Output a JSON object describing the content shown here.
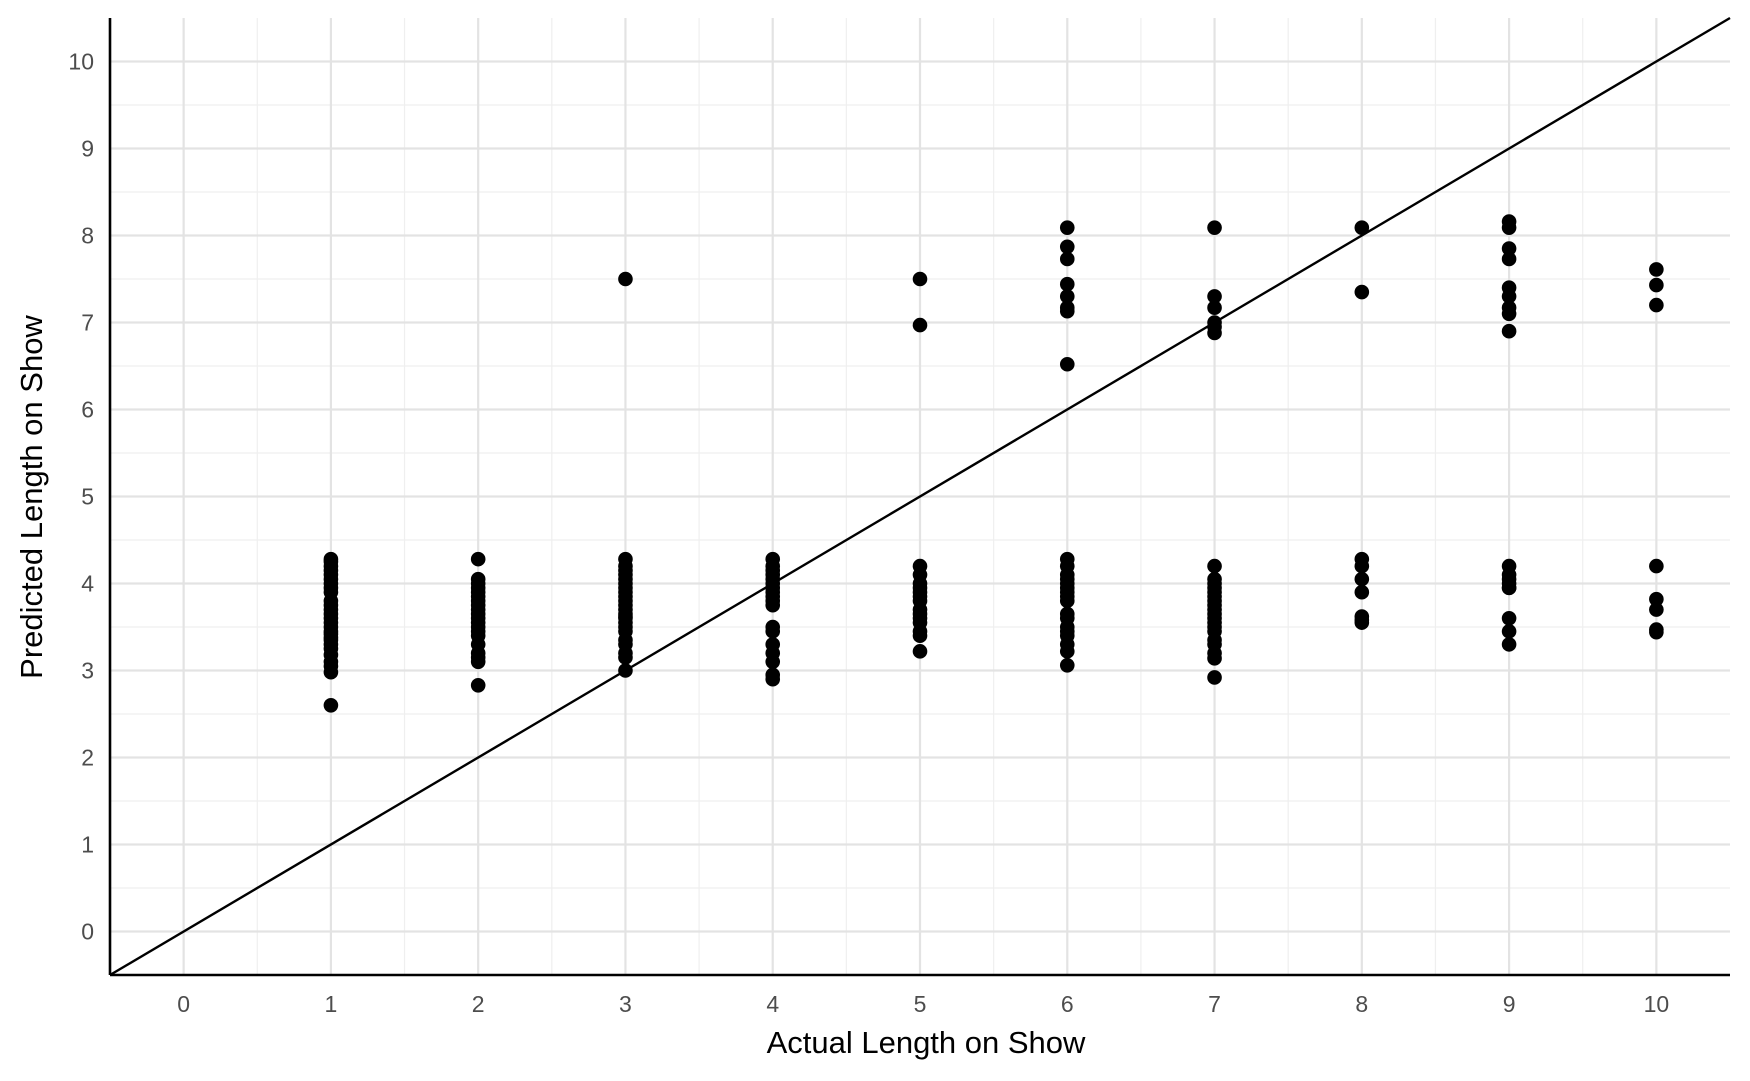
{
  "chart_data": {
    "type": "scatter",
    "xlabel": "Actual Length on Show",
    "ylabel": "Predicted Length on Show",
    "xlim": [
      -0.5,
      10.5
    ],
    "ylim": [
      -0.5,
      10.5
    ],
    "x_ticks": [
      "0",
      "1",
      "2",
      "3",
      "4",
      "5",
      "6",
      "7",
      "8",
      "9",
      "10"
    ],
    "y_ticks": [
      "0",
      "1",
      "2",
      "3",
      "4",
      "5",
      "6",
      "7",
      "8",
      "9",
      "10"
    ],
    "grid": true,
    "reference_line": {
      "slope": 1,
      "intercept": 0
    },
    "point_color": "#000000",
    "points": {
      "x": [
        1,
        1,
        1,
        1,
        1,
        1,
        1,
        1,
        1,
        1,
        1,
        1,
        1,
        1,
        1,
        1,
        1,
        1,
        1,
        1,
        1,
        1,
        1,
        1,
        1,
        1,
        1,
        2,
        2,
        2,
        2,
        2,
        2,
        2,
        2,
        2,
        2,
        2,
        2,
        2,
        2,
        2,
        2,
        2,
        2,
        2,
        2,
        3,
        3,
        3,
        3,
        3,
        3,
        3,
        3,
        3,
        3,
        3,
        3,
        3,
        3,
        3,
        3,
        3,
        3,
        3,
        3,
        3,
        3,
        3,
        3,
        4,
        4,
        4,
        4,
        4,
        4,
        4,
        4,
        4,
        4,
        4,
        4,
        4,
        4,
        4,
        4,
        4,
        4,
        5,
        5,
        5,
        5,
        5,
        5,
        5,
        5,
        5,
        5,
        5,
        5,
        5,
        5,
        5,
        5,
        6,
        6,
        6,
        6,
        6,
        6,
        6,
        6,
        6,
        6,
        6,
        6,
        6,
        6,
        6,
        6,
        6,
        6,
        6,
        6,
        6,
        6,
        6,
        6,
        6,
        7,
        7,
        7,
        7,
        7,
        7,
        7,
        7,
        7,
        7,
        7,
        7,
        7,
        7,
        7,
        7,
        7,
        7,
        7,
        7,
        7,
        7,
        7,
        7,
        7,
        8,
        8,
        8,
        8,
        8,
        8,
        8,
        8,
        8,
        9,
        9,
        9,
        9,
        9,
        9,
        9,
        9,
        9,
        9,
        9,
        9,
        9,
        9,
        9,
        9,
        9,
        9,
        10,
        10,
        10,
        10,
        10,
        10,
        10,
        10
      ],
      "y": [
        2.6,
        2.98,
        3.05,
        3.1,
        3.18,
        3.25,
        3.3,
        3.38,
        3.45,
        3.5,
        3.55,
        3.6,
        3.65,
        3.7,
        3.75,
        3.8,
        3.9,
        3.95,
        4.0,
        4.05,
        4.1,
        4.15,
        4.2,
        4.25,
        4.28,
        3.35,
        3.42,
        2.83,
        3.1,
        3.15,
        3.2,
        3.3,
        3.4,
        3.45,
        3.5,
        3.6,
        3.65,
        3.7,
        3.8,
        3.85,
        3.9,
        3.95,
        4.0,
        4.05,
        4.28,
        3.55,
        3.75,
        3.0,
        3.15,
        3.2,
        3.3,
        3.35,
        3.45,
        3.5,
        3.55,
        3.6,
        3.65,
        3.7,
        3.8,
        3.85,
        3.9,
        3.95,
        4.0,
        4.05,
        4.1,
        4.15,
        4.2,
        4.28,
        7.5,
        3.75,
        3.62,
        2.9,
        2.95,
        3.1,
        3.2,
        3.3,
        3.45,
        3.5,
        3.8,
        3.85,
        3.9,
        4.0,
        4.05,
        4.1,
        4.15,
        4.2,
        4.28,
        3.95,
        3.75,
        3.22,
        3.4,
        3.45,
        3.55,
        3.6,
        3.7,
        3.8,
        3.85,
        3.9,
        3.95,
        4.0,
        4.1,
        4.2,
        6.97,
        7.5,
        3.65,
        3.06,
        3.22,
        3.3,
        3.4,
        3.5,
        3.6,
        3.65,
        3.8,
        3.85,
        3.95,
        4.0,
        4.05,
        4.1,
        4.2,
        4.28,
        6.52,
        7.13,
        7.17,
        7.3,
        7.44,
        7.73,
        7.87,
        8.09,
        3.45,
        3.9,
        2.92,
        3.14,
        3.2,
        3.35,
        3.45,
        3.5,
        3.55,
        3.65,
        3.7,
        3.75,
        3.8,
        3.85,
        3.95,
        4.05,
        4.2,
        6.88,
        6.95,
        7.0,
        7.17,
        7.3,
        8.09,
        3.6,
        3.9,
        4.0,
        3.3,
        3.55,
        3.62,
        3.9,
        4.05,
        4.2,
        4.28,
        7.35,
        8.09,
        3.58,
        3.3,
        3.45,
        3.6,
        3.95,
        4.05,
        4.1,
        4.2,
        6.9,
        7.1,
        7.17,
        7.3,
        7.4,
        7.73,
        7.85,
        8.09,
        8.16,
        4.0,
        3.95,
        3.44,
        3.47,
        3.7,
        3.82,
        4.2,
        7.2,
        7.43,
        7.61
      ]
    }
  }
}
